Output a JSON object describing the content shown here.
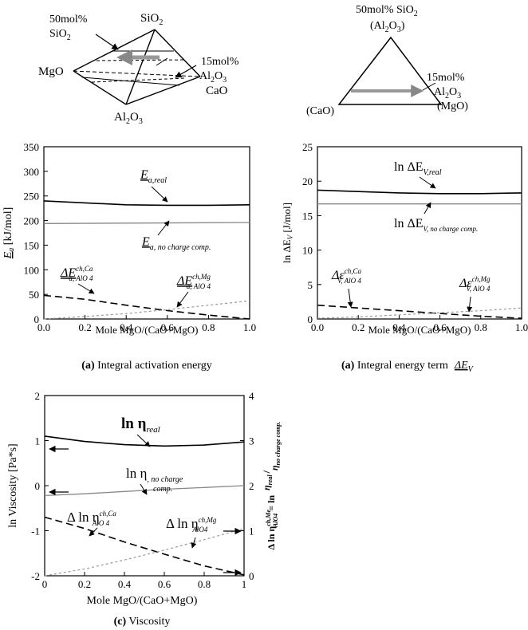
{
  "figure": {
    "diagram_tetra": {
      "vertices": {
        "sio2": "SiO",
        "sio2_sub": "2",
        "mgo": "MgO",
        "cao": "CaO",
        "al2o3_a": "Al",
        "al2o3_sub1": "2",
        "al2o3_b": "O",
        "al2o3_sub2": "3"
      },
      "annot_sio2": {
        "line1": "50mol%",
        "line2": "SiO",
        "line2_sub": "2"
      },
      "annot_al2o3": {
        "line1": "15mol%",
        "line2a": "Al",
        "line2_sub1": "2",
        "line2b": "O",
        "line2_sub2": "3"
      }
    },
    "diagram_tri": {
      "top_line1": "50mol% SiO",
      "top_line1_sub": "2",
      "top_line2a": "(Al",
      "top_line2_sub1": "2",
      "top_line2b": "O",
      "top_line2_sub2": "3",
      "top_line2c": ")",
      "right_label": "(MgO)",
      "left_label": "(CaO)",
      "annot_line1": "15mol%",
      "annot_line2a": "Al",
      "annot_line2_sub1": "2",
      "annot_line2b": "O",
      "annot_line2_sub2": "3"
    }
  },
  "chart_data": [
    {
      "id": "a1",
      "type": "line",
      "title_tag": "(a)",
      "title_text": "Integral activation energy",
      "xlabel": "Mole MgO/(CaO+MgO)",
      "ylabel": "E_a [kJ/mol]",
      "ylabel_main": "E",
      "ylabel_sub": "a",
      "ylabel_unit": " [kJ/mol]",
      "xlim": [
        0,
        1
      ],
      "ylim": [
        0,
        350
      ],
      "x_ticks": [
        "0.0",
        "0.2",
        "0.4",
        "0.6",
        "0.8",
        "1.0"
      ],
      "y_ticks": [
        "0",
        "50",
        "100",
        "150",
        "200",
        "250",
        "300",
        "350"
      ],
      "series": [
        {
          "label_main": "E",
          "label_sub": "a,real",
          "style": "solid-black",
          "x": [
            0,
            0.2,
            0.4,
            0.6,
            0.8,
            1.0
          ],
          "y": [
            240,
            236,
            232,
            231,
            231,
            232
          ]
        },
        {
          "label_main": "E",
          "label_sub": "a, no charge comp.",
          "style": "solid-gray",
          "x": [
            0,
            1.0
          ],
          "y": [
            194,
            196
          ]
        },
        {
          "label_main": "ΔE",
          "label_sup": "ch,Ca",
          "label_sub": "a, AlO 4",
          "style": "dash-black",
          "x": [
            0,
            0.2,
            0.4,
            0.6,
            0.8,
            1.0
          ],
          "y": [
            48,
            40,
            28,
            17,
            8,
            0
          ]
        },
        {
          "label_main": "ΔE",
          "label_sup": "ch,Mg",
          "label_sub": "a, AlO 4",
          "style": "dot-gray",
          "x": [
            0,
            0.2,
            0.4,
            0.6,
            0.8,
            1.0
          ],
          "y": [
            0,
            5,
            11,
            19,
            28,
            37
          ]
        }
      ]
    },
    {
      "id": "a2",
      "type": "line",
      "title_tag": "(a)",
      "title_text": "Integral energy term",
      "title_sym_main": "ΔE",
      "title_sym_sub": "V",
      "xlabel": "Mole MgO/(CaO+MgO)",
      "ylabel": "ln ΔE_V [J/mol]",
      "ylabel_main": "ln ΔE",
      "ylabel_sub": "V",
      "ylabel_unit": " [J/mol]",
      "xlim": [
        0,
        1
      ],
      "ylim": [
        0,
        25
      ],
      "x_ticks": [
        "0.0",
        "0.2",
        "0.4",
        "0.6",
        "0.8",
        "1.0"
      ],
      "y_ticks": [
        "0",
        "5",
        "10",
        "15",
        "20",
        "25"
      ],
      "series": [
        {
          "label_main": "ln ΔE",
          "label_sub": "V,real",
          "style": "solid-black",
          "x": [
            0,
            0.2,
            0.4,
            0.6,
            0.8,
            1.0
          ],
          "y": [
            18.7,
            18.5,
            18.3,
            18.2,
            18.2,
            18.3
          ]
        },
        {
          "label_main": "ln ΔE",
          "label_sub": "V, no charge comp.",
          "style": "solid-gray",
          "x": [
            0,
            1.0
          ],
          "y": [
            16.7,
            16.7
          ]
        },
        {
          "label_main": "Δε",
          "label_sup": "ch,Ca",
          "label_sub": "V, AlO 4",
          "style": "dash-black",
          "x": [
            0,
            0.2,
            0.4,
            0.6,
            0.8,
            1.0
          ],
          "y": [
            2.0,
            1.6,
            1.2,
            0.8,
            0.4,
            0.1
          ]
        },
        {
          "label_main": "Δε",
          "label_sup": "ch,Mg",
          "label_sub": "V, AlO 4",
          "style": "dot-gray",
          "x": [
            0,
            0.2,
            0.4,
            0.6,
            0.8,
            1.0
          ],
          "y": [
            0.1,
            0.3,
            0.6,
            0.9,
            1.2,
            1.6
          ]
        }
      ]
    },
    {
      "id": "c",
      "type": "line",
      "title_tag": "(c)",
      "title_text": "Viscosity",
      "xlabel": "Mole MgO/(CaO+MgO)",
      "ylabel": "ln Viscosity [Pa*s]",
      "y2label_left": "Δ ln η",
      "y2label_sup": "ch,Me",
      "y2label_sub": "AlO4",
      "y2label_mid": " = ln",
      "y2label_num": "η",
      "y2label_num_sub": "real",
      "y2label_den": "η",
      "y2label_den_sub": "no charge comp.",
      "xlim": [
        0,
        1
      ],
      "ylim": [
        -2,
        2
      ],
      "y2lim": [
        0,
        4
      ],
      "x_ticks": [
        "0",
        "0.2",
        "0.4",
        "0.6",
        "0.8",
        "1"
      ],
      "y_ticks": [
        "-2",
        "-1",
        "0",
        "1",
        "2"
      ],
      "y2_ticks": [
        "0",
        "1",
        "2",
        "3",
        "4"
      ],
      "series": [
        {
          "label_main": "ln η",
          "label_sub": "real",
          "style": "solid-black",
          "axis": "left",
          "x": [
            0,
            0.2,
            0.4,
            0.6,
            0.8,
            1.0
          ],
          "y": [
            1.1,
            0.98,
            0.91,
            0.88,
            0.9,
            0.97
          ]
        },
        {
          "label_main": "ln η",
          "label_sub": ", no charge",
          "label_sub2": "comp.",
          "style": "solid-gray",
          "axis": "left",
          "x": [
            0,
            0.2,
            0.4,
            0.6,
            0.8,
            1.0
          ],
          "y": [
            -0.22,
            -0.18,
            -0.13,
            -0.08,
            -0.04,
            0.0
          ]
        },
        {
          "label_main": "Δ ln η",
          "label_sup": "ch,Ca",
          "label_sub": "AlO 4",
          "style": "dash-black",
          "axis": "right",
          "x": [
            0,
            0.2,
            0.4,
            0.6,
            0.8,
            1.0
          ],
          "y": [
            1.3,
            1.05,
            0.75,
            0.48,
            0.22,
            0.02
          ]
        },
        {
          "label_main": "Δ ln η",
          "label_sup": "ch,Mg",
          "label_sub": "AlO4",
          "style": "dot-gray",
          "axis": "right",
          "x": [
            0,
            0.2,
            0.4,
            0.6,
            0.8,
            1.0
          ],
          "y": [
            0.0,
            0.15,
            0.35,
            0.57,
            0.8,
            1.05
          ]
        }
      ]
    }
  ]
}
